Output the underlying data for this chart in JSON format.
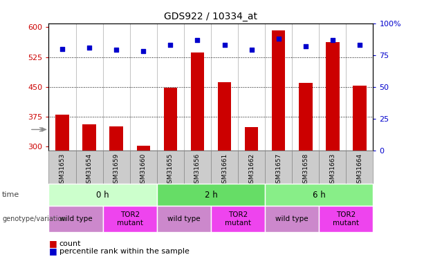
{
  "title": "GDS922 / 10334_at",
  "samples": [
    "GSM31653",
    "GSM31654",
    "GSM31659",
    "GSM31660",
    "GSM31655",
    "GSM31656",
    "GSM31661",
    "GSM31662",
    "GSM31657",
    "GSM31658",
    "GSM31663",
    "GSM31664"
  ],
  "count_values": [
    380,
    355,
    350,
    302,
    447,
    537,
    462,
    348,
    593,
    460,
    562,
    453
  ],
  "percentile_values": [
    80,
    81,
    79,
    78,
    83,
    87,
    83,
    79,
    88,
    82,
    87,
    83
  ],
  "ylim_left": [
    290,
    610
  ],
  "ylim_right": [
    0,
    100
  ],
  "yticks_left": [
    300,
    375,
    450,
    525,
    600
  ],
  "yticks_right": [
    0,
    25,
    50,
    75,
    100
  ],
  "bar_color": "#cc0000",
  "dot_color": "#0000cc",
  "bar_width": 0.5,
  "gridline_values": [
    375,
    450,
    525
  ],
  "time_labels": [
    "0 h",
    "2 h",
    "6 h"
  ],
  "time_starts": [
    0,
    4,
    8
  ],
  "time_ends": [
    4,
    8,
    12
  ],
  "time_colors": [
    "#ccffcc",
    "#66dd66",
    "#88ee88"
  ],
  "geno_labels": [
    "wild type",
    "TOR2\nmutant",
    "wild type",
    "TOR2\nmutant",
    "wild type",
    "TOR2\nmutant"
  ],
  "geno_starts": [
    0,
    2,
    4,
    6,
    8,
    10
  ],
  "geno_ends": [
    2,
    4,
    6,
    8,
    10,
    12
  ],
  "geno_colors": [
    "#cc88cc",
    "#ee44ee",
    "#cc88cc",
    "#ee44ee",
    "#cc88cc",
    "#ee44ee"
  ],
  "left_axis_color": "#cc0000",
  "right_axis_color": "#0000cc",
  "sample_box_color": "#cccccc",
  "sample_box_border": "#888888"
}
